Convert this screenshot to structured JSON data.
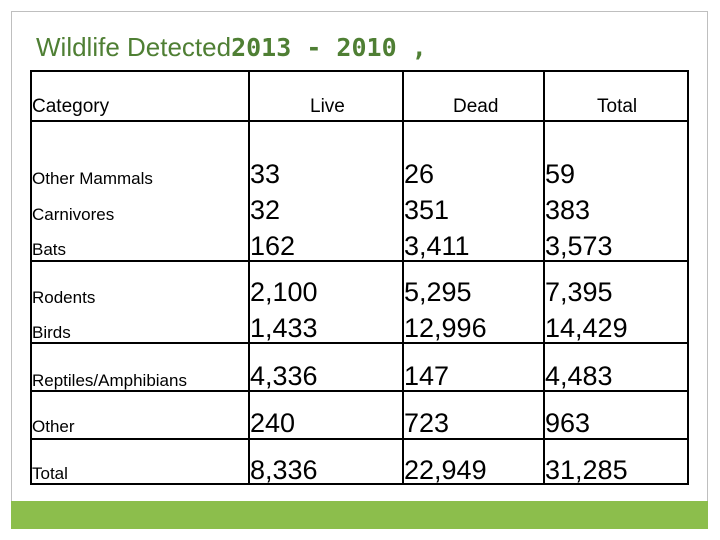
{
  "title": {
    "main": "Wildlife Detected",
    "years": "2013 - 2010 ,"
  },
  "colors": {
    "title": "#4f7f34",
    "bar": "#8cbe4c",
    "frame": "#bfbfbf"
  },
  "table": {
    "headers": [
      "Category",
      "Live",
      "Dead",
      "Total"
    ],
    "groups": [
      {
        "categories": [
          "Other Mammals",
          "Carnivores",
          "Bats"
        ],
        "live": [
          "33",
          "32",
          "162"
        ],
        "dead": [
          "26",
          "351",
          "3,411"
        ],
        "total": [
          "59",
          "383",
          "3,573"
        ]
      },
      {
        "categories": [
          "Rodents",
          "Birds"
        ],
        "live": [
          "2,100",
          "1,433"
        ],
        "dead": [
          "5,295",
          "12,996"
        ],
        "total": [
          "7,395",
          "14,429"
        ]
      },
      {
        "categories": [
          "Reptiles/Amphibians"
        ],
        "live": [
          "4,336"
        ],
        "dead": [
          "147"
        ],
        "total": [
          "4,483"
        ]
      },
      {
        "categories": [
          "Other"
        ],
        "live": [
          "240"
        ],
        "dead": [
          "723"
        ],
        "total": [
          "963"
        ]
      },
      {
        "categories": [
          "Total"
        ],
        "live": [
          "8,336"
        ],
        "dead": [
          "22,949"
        ],
        "total": [
          "31,285"
        ]
      }
    ]
  }
}
